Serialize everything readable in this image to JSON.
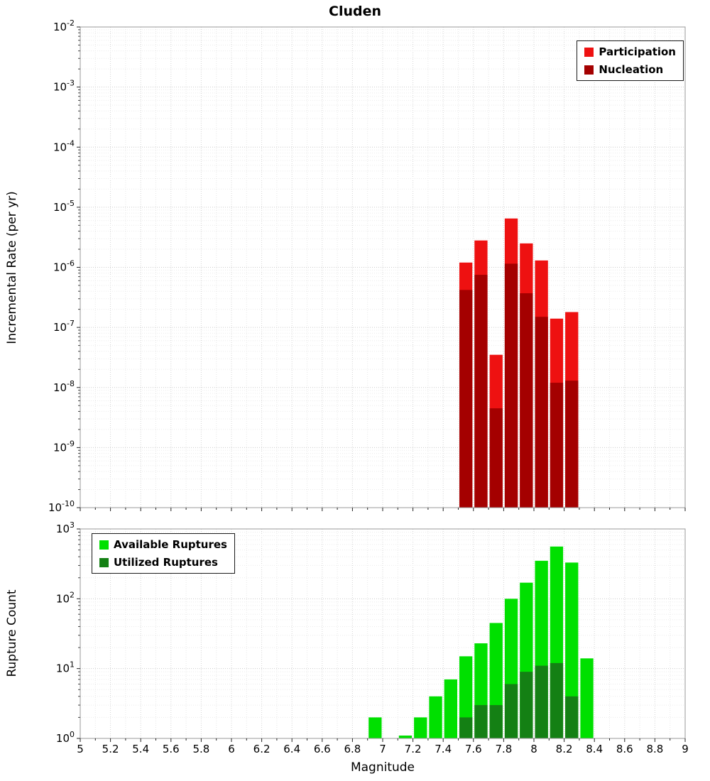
{
  "chart_data": [
    {
      "type": "bar",
      "title": "Cluden",
      "ylabel": "Incremental Rate (per yr)",
      "x_range": [
        5,
        9
      ],
      "y_exp_range": [
        -10,
        -2
      ],
      "bar_width": 0.1,
      "legend_position": "upper right",
      "grid": true,
      "series": [
        {
          "name": "Participation",
          "color": "#ee1111",
          "x": [
            7.5,
            7.6,
            7.7,
            7.8,
            7.9,
            8.0,
            8.1,
            8.2
          ],
          "values": [
            1.2e-06,
            2.8e-06,
            3.5e-08,
            6.5e-06,
            2.5e-06,
            1.3e-06,
            1.4e-07,
            1.8e-07
          ]
        },
        {
          "name": "Nucleation",
          "color": "#a40000",
          "x": [
            7.5,
            7.6,
            7.7,
            7.8,
            7.9,
            8.0,
            8.1,
            8.2
          ],
          "values": [
            4.2e-07,
            7.5e-07,
            4.5e-09,
            1.15e-06,
            3.7e-07,
            1.5e-07,
            1.2e-08,
            1.3e-08
          ]
        }
      ]
    },
    {
      "type": "bar",
      "title": "",
      "ylabel": "Rupture Count",
      "xlabel": "Magnitude",
      "x_range": [
        5,
        9
      ],
      "y_exp_range": [
        0,
        3
      ],
      "bar_width": 0.1,
      "legend_position": "upper left",
      "grid": true,
      "series": [
        {
          "name": "Available Ruptures",
          "color": "#00e000",
          "x": [
            6.9,
            7.1,
            7.2,
            7.3,
            7.4,
            7.5,
            7.6,
            7.7,
            7.8,
            7.9,
            8.0,
            8.1,
            8.2,
            8.3
          ],
          "values": [
            2,
            1,
            2,
            4,
            7,
            15,
            23,
            45,
            100,
            170,
            350,
            560,
            330,
            14
          ]
        },
        {
          "name": "Utilized Ruptures",
          "color": "#148014",
          "x": [
            7.5,
            7.6,
            7.7,
            7.8,
            7.9,
            8.0,
            8.1,
            8.2
          ],
          "values": [
            2,
            3,
            3,
            6,
            9,
            11,
            12,
            4
          ]
        }
      ]
    }
  ],
  "axes": {
    "x_tick_labels": [
      "5",
      "5.2",
      "5.4",
      "5.6",
      "5.8",
      "6",
      "6.2",
      "6.4",
      "6.6",
      "6.8",
      "7",
      "7.2",
      "7.4",
      "7.6",
      "7.8",
      "8",
      "8.2",
      "8.4",
      "8.6",
      "8.8",
      "9"
    ],
    "top_y_exponents": [
      -2,
      -3,
      -4,
      -5,
      -6,
      -7,
      -8,
      -9,
      -10
    ],
    "bottom_y_exponents": [
      3,
      2,
      1,
      0
    ]
  }
}
